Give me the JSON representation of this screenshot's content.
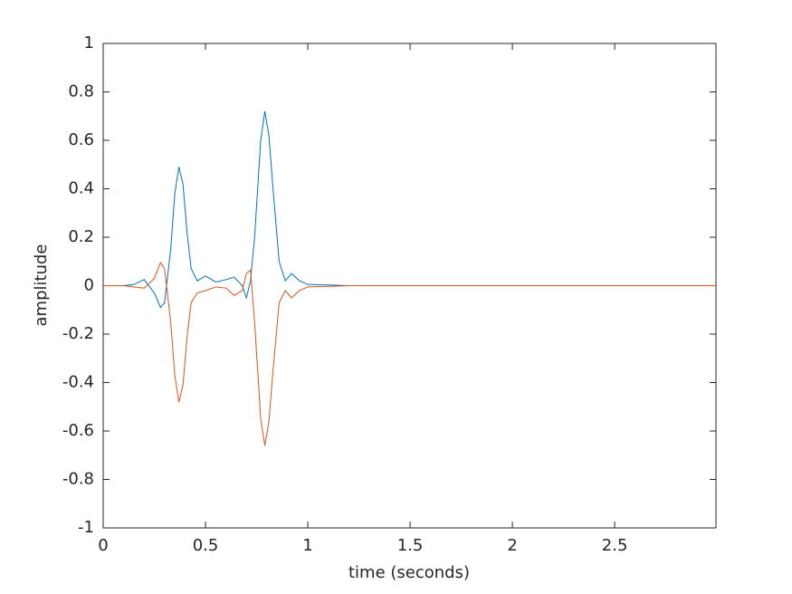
{
  "chart_data": {
    "type": "line",
    "x": [
      0,
      0.1,
      0.15,
      0.2,
      0.25,
      0.28,
      0.3,
      0.33,
      0.35,
      0.37,
      0.39,
      0.41,
      0.43,
      0.46,
      0.5,
      0.55,
      0.6,
      0.64,
      0.68,
      0.7,
      0.72,
      0.74,
      0.77,
      0.79,
      0.81,
      0.83,
      0.86,
      0.89,
      0.92,
      0.96,
      1.0,
      1.1,
      1.2,
      2,
      2.995
    ],
    "series": [
      {
        "color": "#0072bd",
        "values": [
          0,
          0,
          0.005,
          0.025,
          -0.03,
          -0.09,
          -0.07,
          0.15,
          0.38,
          0.49,
          0.42,
          0.22,
          0.07,
          0.02,
          0.04,
          0.015,
          0.025,
          0.035,
          0.0,
          -0.05,
          0.02,
          0.2,
          0.6,
          0.72,
          0.62,
          0.4,
          0.1,
          0.02,
          0.05,
          0.02,
          0.005,
          0.003,
          0,
          0,
          0
        ]
      },
      {
        "color": "#d95319",
        "values": [
          0,
          0,
          -0.005,
          -0.01,
          0.03,
          0.095,
          0.07,
          -0.15,
          -0.37,
          -0.48,
          -0.41,
          -0.21,
          -0.07,
          -0.03,
          -0.02,
          -0.005,
          -0.01,
          -0.04,
          -0.02,
          0.05,
          0.065,
          -0.15,
          -0.55,
          -0.66,
          -0.56,
          -0.35,
          -0.07,
          -0.02,
          -0.05,
          -0.02,
          -0.005,
          -0.003,
          0,
          0,
          0
        ]
      }
    ],
    "x_label": "time (seconds)",
    "y_label": "amplitude",
    "xlim": [
      0,
      2.995
    ],
    "xticks": [
      0,
      0.5,
      1,
      1.5,
      2,
      2.5
    ],
    "ylim": [
      -1,
      1
    ],
    "yticks": [
      -1,
      -0.8,
      -0.6,
      -0.4,
      -0.2,
      0,
      0.2,
      0.4,
      0.6,
      0.8,
      1
    ],
    "grid": false
  }
}
